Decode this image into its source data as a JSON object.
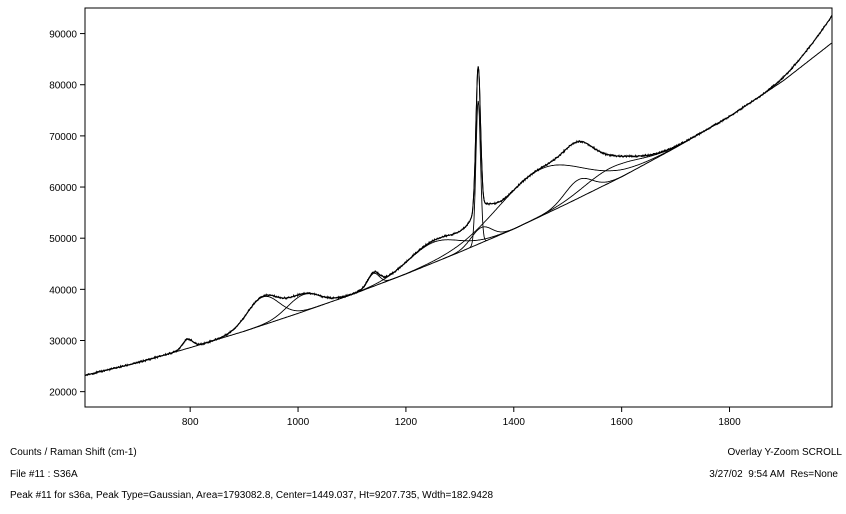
{
  "chart_data": {
    "type": "line",
    "xlabel": "",
    "ylabel": "",
    "xlim": [
      605,
      1990
    ],
    "ylim": [
      17000,
      95000
    ],
    "x_ticks": [
      800,
      1000,
      1200,
      1400,
      1600,
      1800
    ],
    "y_ticks": [
      20000,
      30000,
      40000,
      50000,
      60000,
      70000,
      80000,
      90000
    ],
    "x_tick_labels": [
      "800",
      "1000",
      "1200",
      "1400",
      "1600",
      "1800"
    ],
    "y_tick_labels": [
      "20000",
      "30000",
      "40000",
      "50000",
      "60000",
      "70000",
      "80000",
      "90000"
    ],
    "grid": false,
    "baseline": {
      "x": [
        605,
        700,
        800,
        900,
        1000,
        1100,
        1200,
        1300,
        1400,
        1500,
        1600,
        1700,
        1800,
        1900,
        1990
      ],
      "y": [
        23200,
        25600,
        28600,
        31800,
        35300,
        39000,
        43000,
        47300,
        51800,
        56800,
        62000,
        67700,
        73800,
        80800,
        88200
      ]
    },
    "peaks": [
      {
        "center": 795,
        "height": 1800,
        "width": 22
      },
      {
        "center": 935,
        "height": 5500,
        "width": 70
      },
      {
        "center": 1010,
        "height": 3300,
        "width": 70
      },
      {
        "center": 1140,
        "height": 2500,
        "width": 25
      },
      {
        "center": 1250,
        "height": 4000,
        "width": 110
      },
      {
        "center": 1334,
        "height": 28000,
        "width": 10
      },
      {
        "center": 1340,
        "height": 3000,
        "width": 45
      },
      {
        "center": 1449.037,
        "height": 9207.735,
        "width": 182.9428
      },
      {
        "center": 1520,
        "height": 3600,
        "width": 60
      },
      {
        "center": 1580,
        "height": 2800,
        "width": 120
      }
    ],
    "end_rise": {
      "start": 1850,
      "end": 1990,
      "amount": 5300
    }
  },
  "info": {
    "axis_units": "Counts / Raman Shift (cm-1)",
    "file_line": "File #11 : S36A",
    "peak_line": "Peak #11 for s36a, Peak Type=Gaussian, Area=1793082.8, Center=1449.037, Ht=9207.735, Wdth=182.9428",
    "mode_line": "Overlay Y-Zoom SCROLL",
    "timestamp_line": "3/27/02  9:54 AM  Res=None"
  },
  "colors": {
    "trace": "#000000",
    "background": "#ffffff"
  }
}
